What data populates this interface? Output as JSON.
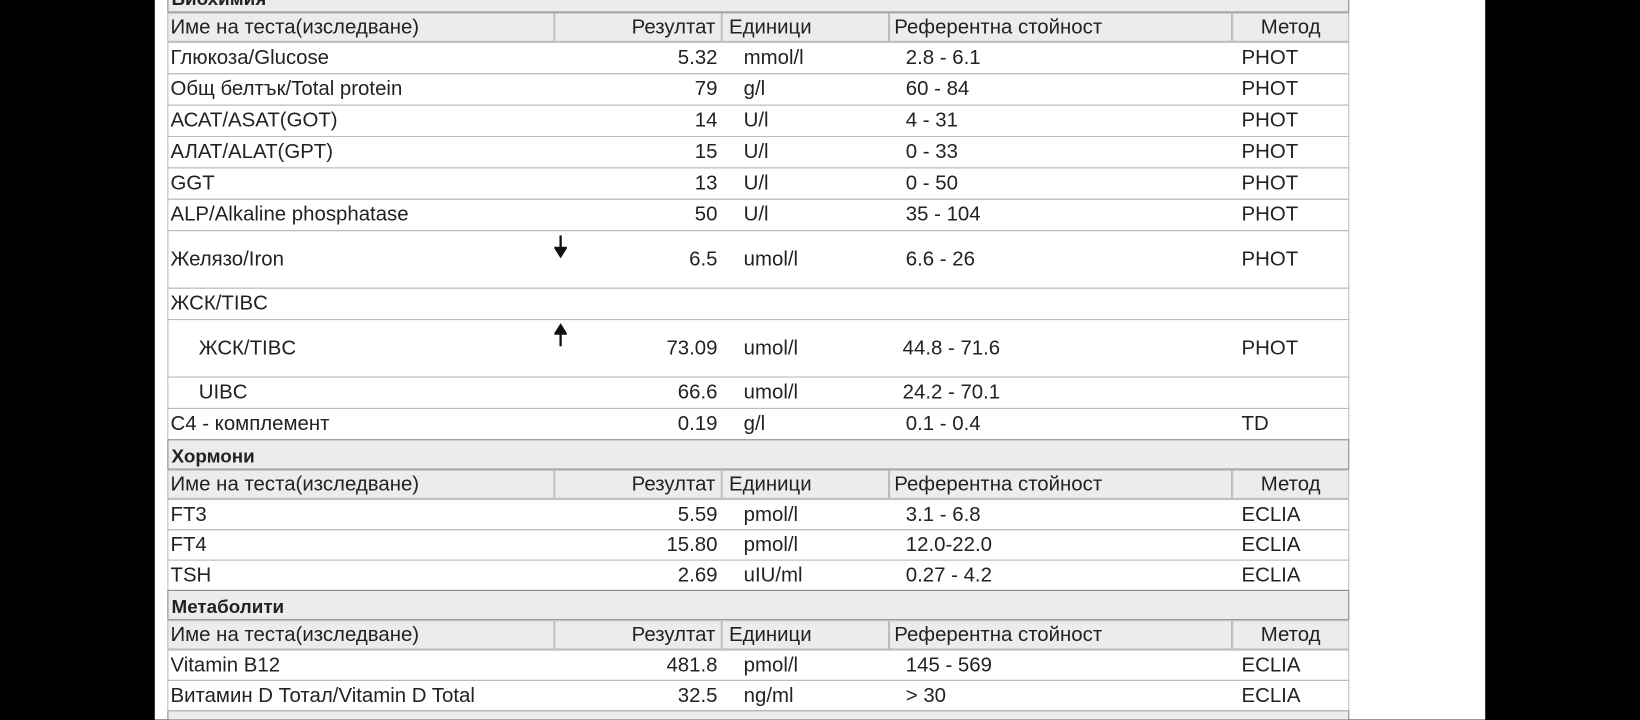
{
  "sections": [
    {
      "title": "Биохимия",
      "header": {
        "name": "Име на теста(изследване)",
        "result": "Резултат",
        "units": "Единици",
        "ref": "Референтна стойност",
        "method": "Метод"
      },
      "rows": [
        {
          "name": "Глюкоза/Glucose",
          "result": "5.32",
          "units": "mmol/l",
          "ref": "2.8 - 6.1",
          "method": "PHOT"
        },
        {
          "name": "Общ белтък/Total protein",
          "result": "79",
          "units": "g/l",
          "ref": "60 - 84",
          "method": "PHOT"
        },
        {
          "name": "АСАТ/ASAT(GOT)",
          "result": "14",
          "units": "U/l",
          "ref": "4 - 31",
          "method": "PHOT"
        },
        {
          "name": "АЛАТ/ALAT(GPT)",
          "result": "15",
          "units": "U/l",
          "ref": "0 - 33",
          "method": "PHOT"
        },
        {
          "name": "GGT",
          "result": "13",
          "units": "U/l",
          "ref": "0 - 50",
          "method": "PHOT"
        },
        {
          "name": "ALP/Alkaline phosphatase",
          "result": "50",
          "units": "U/l",
          "ref": "35 - 104",
          "method": "PHOT"
        },
        {
          "name": "Желязо/Iron",
          "result": "6.5",
          "units": "umol/l",
          "ref": "6.6 - 26",
          "method": "PHOT"
        },
        {
          "name": "ЖСК/TIBC"
        },
        {
          "name": "ЖСК/TIBC",
          "result": "73.09",
          "units": "umol/l",
          "ref": "44.8 - 71.6",
          "method": "PHOT"
        },
        {
          "name": "UIBC",
          "result": "66.6",
          "units": "umol/l",
          "ref": "24.2 - 70.1"
        },
        {
          "name": "C4 - комплемент",
          "result": "0.19",
          "units": "g/l",
          "ref": "0.1 - 0.4",
          "method": "TD"
        }
      ]
    },
    {
      "title": "Хормони",
      "header": {
        "name": "Име на теста(изследване)",
        "result": "Резултат",
        "units": "Единици",
        "ref": "Референтна стойност",
        "method": "Метод"
      },
      "rows": [
        {
          "name": "FT3",
          "result": "5.59",
          "units": "pmol/l",
          "ref": "3.1 - 6.8",
          "method": "ECLIA"
        },
        {
          "name": "FT4",
          "result": "15.80",
          "units": "pmol/l",
          "ref": "12.0-22.0",
          "method": "ECLIA"
        },
        {
          "name": "TSH",
          "result": "2.69",
          "units": "uIU/ml",
          "ref": "0.27 - 4.2",
          "method": "ECLIA"
        }
      ]
    },
    {
      "title": "Метаболити",
      "header": {
        "name": "Име на теста(изследване)",
        "result": "Резултат",
        "units": "Единици",
        "ref": "Референтна стойност",
        "method": "Метод"
      },
      "rows": [
        {
          "name": "Vitamin B12",
          "result": "481.8",
          "units": "pmol/l",
          "ref": "145 - 569",
          "method": "ECLIA"
        },
        {
          "name": "Витамин D Тотал/Vitamin D Total",
          "result": "32.5",
          "units": "ng/ml",
          "ref": "> 30",
          "method": "ECLIA"
        }
      ]
    }
  ]
}
